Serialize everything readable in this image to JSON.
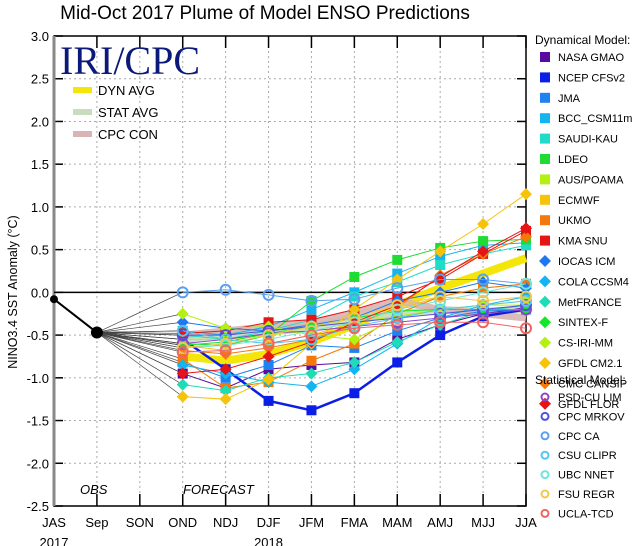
{
  "chart_data": {
    "type": "line",
    "title": "Mid-Oct 2017 Plume of Model ENSO Predictions",
    "ylabel": "NINO3.4 SST Anomaly (°C)",
    "xlabel": "",
    "ylim": [
      -2.5,
      3.0
    ],
    "yticks": [
      "3.0",
      "2.5",
      "2.0",
      "1.5",
      "1.0",
      "0.5",
      "0.0",
      "-0.5",
      "-1.0",
      "-1.5",
      "-2.0",
      "-2.5"
    ],
    "ytick_values": [
      3.0,
      2.5,
      2.0,
      1.5,
      1.0,
      0.5,
      0.0,
      -0.5,
      -1.0,
      -1.5,
      -2.0,
      -2.5
    ],
    "categories": [
      "JAS",
      "Sep",
      "SON",
      "OND",
      "NDJ",
      "DJF",
      "JFM",
      "FMA",
      "MAM",
      "AMJ",
      "MJJ",
      "JJA"
    ],
    "year_labels": [
      {
        "label": "2017",
        "at": "JAS"
      },
      {
        "label": "2018",
        "at": "DJF"
      }
    ],
    "grid": true,
    "annotations": {
      "obs": "OBS",
      "forecast": "FORECAST",
      "logo": "IRI/CPC"
    },
    "observed": {
      "name": "OBS",
      "categories": [
        "JAS",
        "Sep"
      ],
      "values": [
        -0.08,
        -0.47
      ],
      "color": "#000000"
    },
    "forecast_categories": [
      "OND",
      "NDJ",
      "DJF",
      "JFM",
      "FMA",
      "MAM",
      "AMJ",
      "MJJ",
      "JJA"
    ],
    "averages": [
      {
        "name": "DYN AVG",
        "color": "#f5e60a",
        "values": [
          -0.75,
          -0.8,
          -0.72,
          -0.58,
          -0.38,
          -0.15,
          0.05,
          0.22,
          0.4
        ]
      },
      {
        "name": "STAT AVG",
        "color": "#c8dcc0",
        "values": [
          -0.55,
          -0.5,
          -0.45,
          -0.4,
          -0.3,
          -0.25,
          -0.2,
          -0.22,
          -0.2
        ]
      },
      {
        "name": "CPC CON",
        "color": "#d8b4b4",
        "values": [
          -0.5,
          -0.45,
          -0.4,
          -0.35,
          -0.25,
          -0.1,
          -0.2,
          -0.25,
          -0.3
        ]
      }
    ],
    "legend": {
      "dynamical_header": "Dynamical Model:",
      "statistical_header": "Statistical Model:",
      "placement": "right"
    },
    "dynamical_series": [
      {
        "name": "NASA GMAO",
        "color": "#5a0a9e",
        "marker": "square",
        "values": [
          -0.95,
          -1.12,
          -0.9,
          -0.85,
          -0.82,
          -0.55,
          -0.38,
          -0.25,
          -0.18
        ]
      },
      {
        "name": "NCEP CFSv2",
        "color": "#0a1ee6",
        "marker": "square",
        "values": [
          -0.55,
          -0.9,
          -1.27,
          -1.38,
          -1.18,
          -0.82,
          -0.5,
          -0.28,
          -0.2
        ]
      },
      {
        "name": "JMA",
        "color": "#1e82f0",
        "marker": "square",
        "values": [
          -0.82,
          -1.0,
          -0.85,
          -0.62,
          -0.65,
          -0.45,
          -0.3,
          -0.22,
          -0.2
        ]
      },
      {
        "name": "BCC_CSM11m",
        "color": "#14b4f0",
        "marker": "square",
        "values": [
          -0.45,
          -0.5,
          -0.4,
          -0.2,
          0.0,
          0.22,
          0.42,
          0.55,
          0.58
        ]
      },
      {
        "name": "SAUDI-KAU",
        "color": "#1edcc8",
        "marker": "square",
        "values": [
          -0.5,
          -0.55,
          -0.45,
          -0.32,
          -0.05,
          0.12,
          0.32,
          0.45,
          0.55
        ]
      },
      {
        "name": "LDEO",
        "color": "#1edc32",
        "marker": "square",
        "values": [
          -0.6,
          -0.62,
          -0.5,
          -0.1,
          0.18,
          0.38,
          0.52,
          0.6,
          0.62
        ]
      },
      {
        "name": "AUS/POAMA",
        "color": "#b4f014",
        "marker": "square",
        "values": [
          -0.55,
          -0.55,
          -0.5,
          -0.45,
          -0.35,
          -0.28,
          -0.2,
          -0.15,
          -0.15
        ]
      },
      {
        "name": "ECMWF",
        "color": "#f5c30a",
        "marker": "square",
        "values": [
          -0.62,
          -0.68,
          -0.6,
          -0.5,
          -0.35,
          -0.2,
          -0.05,
          0.05,
          0.1
        ]
      },
      {
        "name": "UKMO",
        "color": "#f5780a",
        "marker": "square",
        "values": [
          -0.78,
          -1.12,
          -1.05,
          -0.8,
          -0.6,
          -0.25,
          -0.05,
          0.05,
          0.1
        ]
      },
      {
        "name": "KMA SNU",
        "color": "#e61414",
        "marker": "square",
        "values": [
          -0.48,
          -0.45,
          -0.35,
          -0.32,
          -0.2,
          -0.05,
          0.15,
          0.45,
          0.72
        ]
      },
      {
        "name": "IOCAS ICM",
        "color": "#1e78f0",
        "marker": "diamond",
        "values": [
          -0.35,
          -0.42,
          -0.45,
          -0.38,
          -0.3,
          -0.1,
          0.0,
          0.12,
          0.05
        ]
      },
      {
        "name": "COLA CCSM4",
        "color": "#14b4f0",
        "marker": "diamond",
        "values": [
          -0.85,
          -0.95,
          -1.05,
          -1.1,
          -0.9,
          -0.6,
          -0.3,
          -0.15,
          -0.05
        ]
      },
      {
        "name": "MetFRANCE",
        "color": "#1edcb4",
        "marker": "diamond",
        "values": [
          -1.08,
          -1.15,
          -1.0,
          -0.95,
          -0.82,
          -0.58,
          -0.38,
          -0.22,
          -0.15
        ]
      },
      {
        "name": "SINTEX-F",
        "color": "#14e628",
        "marker": "diamond",
        "values": [
          -0.62,
          -0.58,
          -0.48,
          -0.4,
          -0.3,
          -0.22,
          -0.2,
          -0.2,
          -0.2
        ]
      },
      {
        "name": "CS-IRI-MM",
        "color": "#b4f014",
        "marker": "diamond",
        "values": [
          -0.25,
          -0.42,
          -0.4,
          -0.5,
          -0.55,
          -0.3,
          -0.2,
          -0.15,
          -0.1
        ]
      },
      {
        "name": "GFDL CM2.1",
        "color": "#f5c30a",
        "marker": "diamond",
        "values": [
          -1.22,
          -1.25,
          -1.02,
          -0.6,
          -0.2,
          0.15,
          0.48,
          0.8,
          1.15
        ]
      },
      {
        "name": "CMC CANSIP",
        "color": "#f5780a",
        "marker": "diamond",
        "values": [
          -0.68,
          -0.72,
          -0.65,
          -0.55,
          -0.38,
          -0.18,
          0.2,
          0.45,
          0.65
        ]
      },
      {
        "name": "GFDL FLOR",
        "color": "#e61414",
        "marker": "diamond",
        "values": [
          -0.95,
          -0.9,
          -0.75,
          -0.58,
          -0.35,
          -0.15,
          0.18,
          0.48,
          0.75
        ]
      }
    ],
    "statistical_series": [
      {
        "name": "PSD-CU LIM",
        "color": "#8c46c8",
        "marker": "circle",
        "values": [
          -0.6,
          -0.55,
          -0.48,
          -0.45,
          -0.4,
          -0.35,
          -0.3,
          -0.25,
          -0.2
        ]
      },
      {
        "name": "CPC MRKOV",
        "color": "#5050dc",
        "marker": "circle",
        "values": [
          -0.5,
          -0.5,
          -0.45,
          -0.4,
          -0.35,
          -0.3,
          -0.25,
          -0.2,
          -0.15
        ]
      },
      {
        "name": "CPC CA",
        "color": "#5aa0f0",
        "marker": "circle",
        "values": [
          0.0,
          0.03,
          -0.03,
          -0.1,
          -0.08,
          0.05,
          0.15,
          0.15,
          0.1
        ]
      },
      {
        "name": "CSU CLIPR",
        "color": "#50c8f0",
        "marker": "circle",
        "values": [
          -0.45,
          -0.55,
          -0.6,
          -0.55,
          -0.4,
          -0.3,
          -0.2,
          -0.15,
          -0.1
        ]
      },
      {
        "name": "UBC NNET",
        "color": "#6ee6dc",
        "marker": "circle",
        "values": [
          -0.65,
          -0.62,
          -0.55,
          -0.45,
          -0.35,
          -0.2,
          -0.1,
          0.0,
          0.1
        ]
      },
      {
        "name": "FSU REGR",
        "color": "#f0c850",
        "marker": "circle",
        "values": [
          -0.65,
          -0.6,
          -0.5,
          -0.4,
          -0.3,
          -0.15,
          -0.05,
          -0.1,
          -0.05
        ]
      },
      {
        "name": "UCLA-TCD",
        "color": "#f06464",
        "marker": "circle",
        "values": [
          -0.7,
          -0.68,
          -0.6,
          -0.5,
          -0.42,
          -0.38,
          -0.35,
          -0.35,
          -0.42
        ]
      }
    ]
  }
}
